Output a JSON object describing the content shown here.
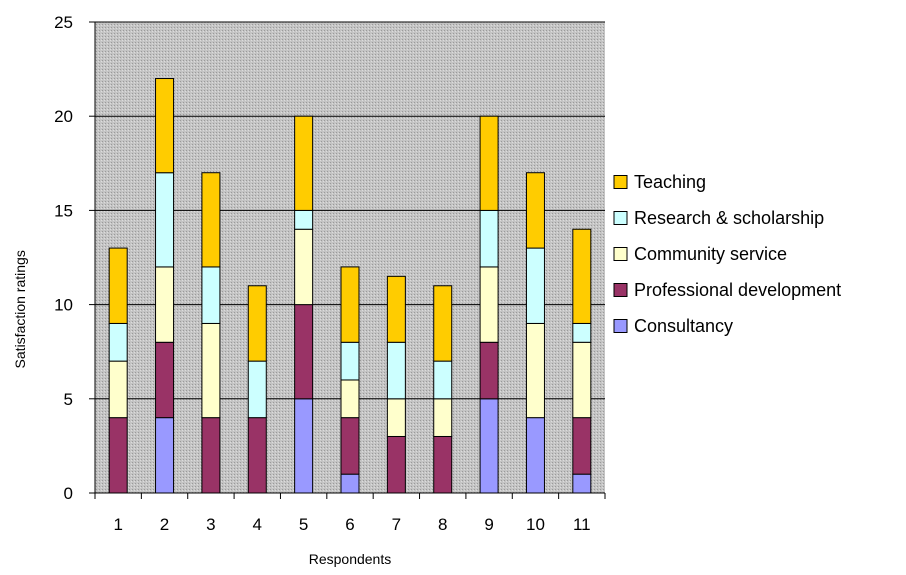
{
  "chart_data": {
    "type": "bar",
    "stacked": true,
    "xlabel": "Respondents",
    "ylabel": "Satisfaction ratings",
    "ylim": [
      0,
      25
    ],
    "yticks": [
      0,
      5,
      10,
      15,
      20,
      25
    ],
    "grid": true,
    "legend_position": "right",
    "categories": [
      "1",
      "2",
      "3",
      "4",
      "5",
      "6",
      "7",
      "8",
      "9",
      "10",
      "11"
    ],
    "series": [
      {
        "name": "Consultancy",
        "color": "#9999ff",
        "values": [
          0,
          4,
          0,
          0,
          5,
          1,
          0,
          0,
          5,
          4,
          1
        ]
      },
      {
        "name": "Professional development",
        "color": "#993366",
        "values": [
          4,
          4,
          4,
          4,
          5,
          3,
          3,
          3,
          3,
          0,
          3
        ]
      },
      {
        "name": "Community service",
        "color": "#ffffcc",
        "values": [
          3,
          4,
          5,
          0,
          4,
          2,
          2,
          2,
          4,
          5,
          4
        ]
      },
      {
        "name": "Research & scholarship",
        "color": "#ccffff",
        "values": [
          2,
          5,
          3,
          3,
          1,
          2,
          3,
          2,
          3,
          4,
          1
        ]
      },
      {
        "name": "Teaching",
        "color": "#ffcc00",
        "values": [
          4,
          5,
          5,
          4,
          5,
          4,
          3.5,
          4,
          5,
          4,
          5
        ]
      }
    ]
  }
}
